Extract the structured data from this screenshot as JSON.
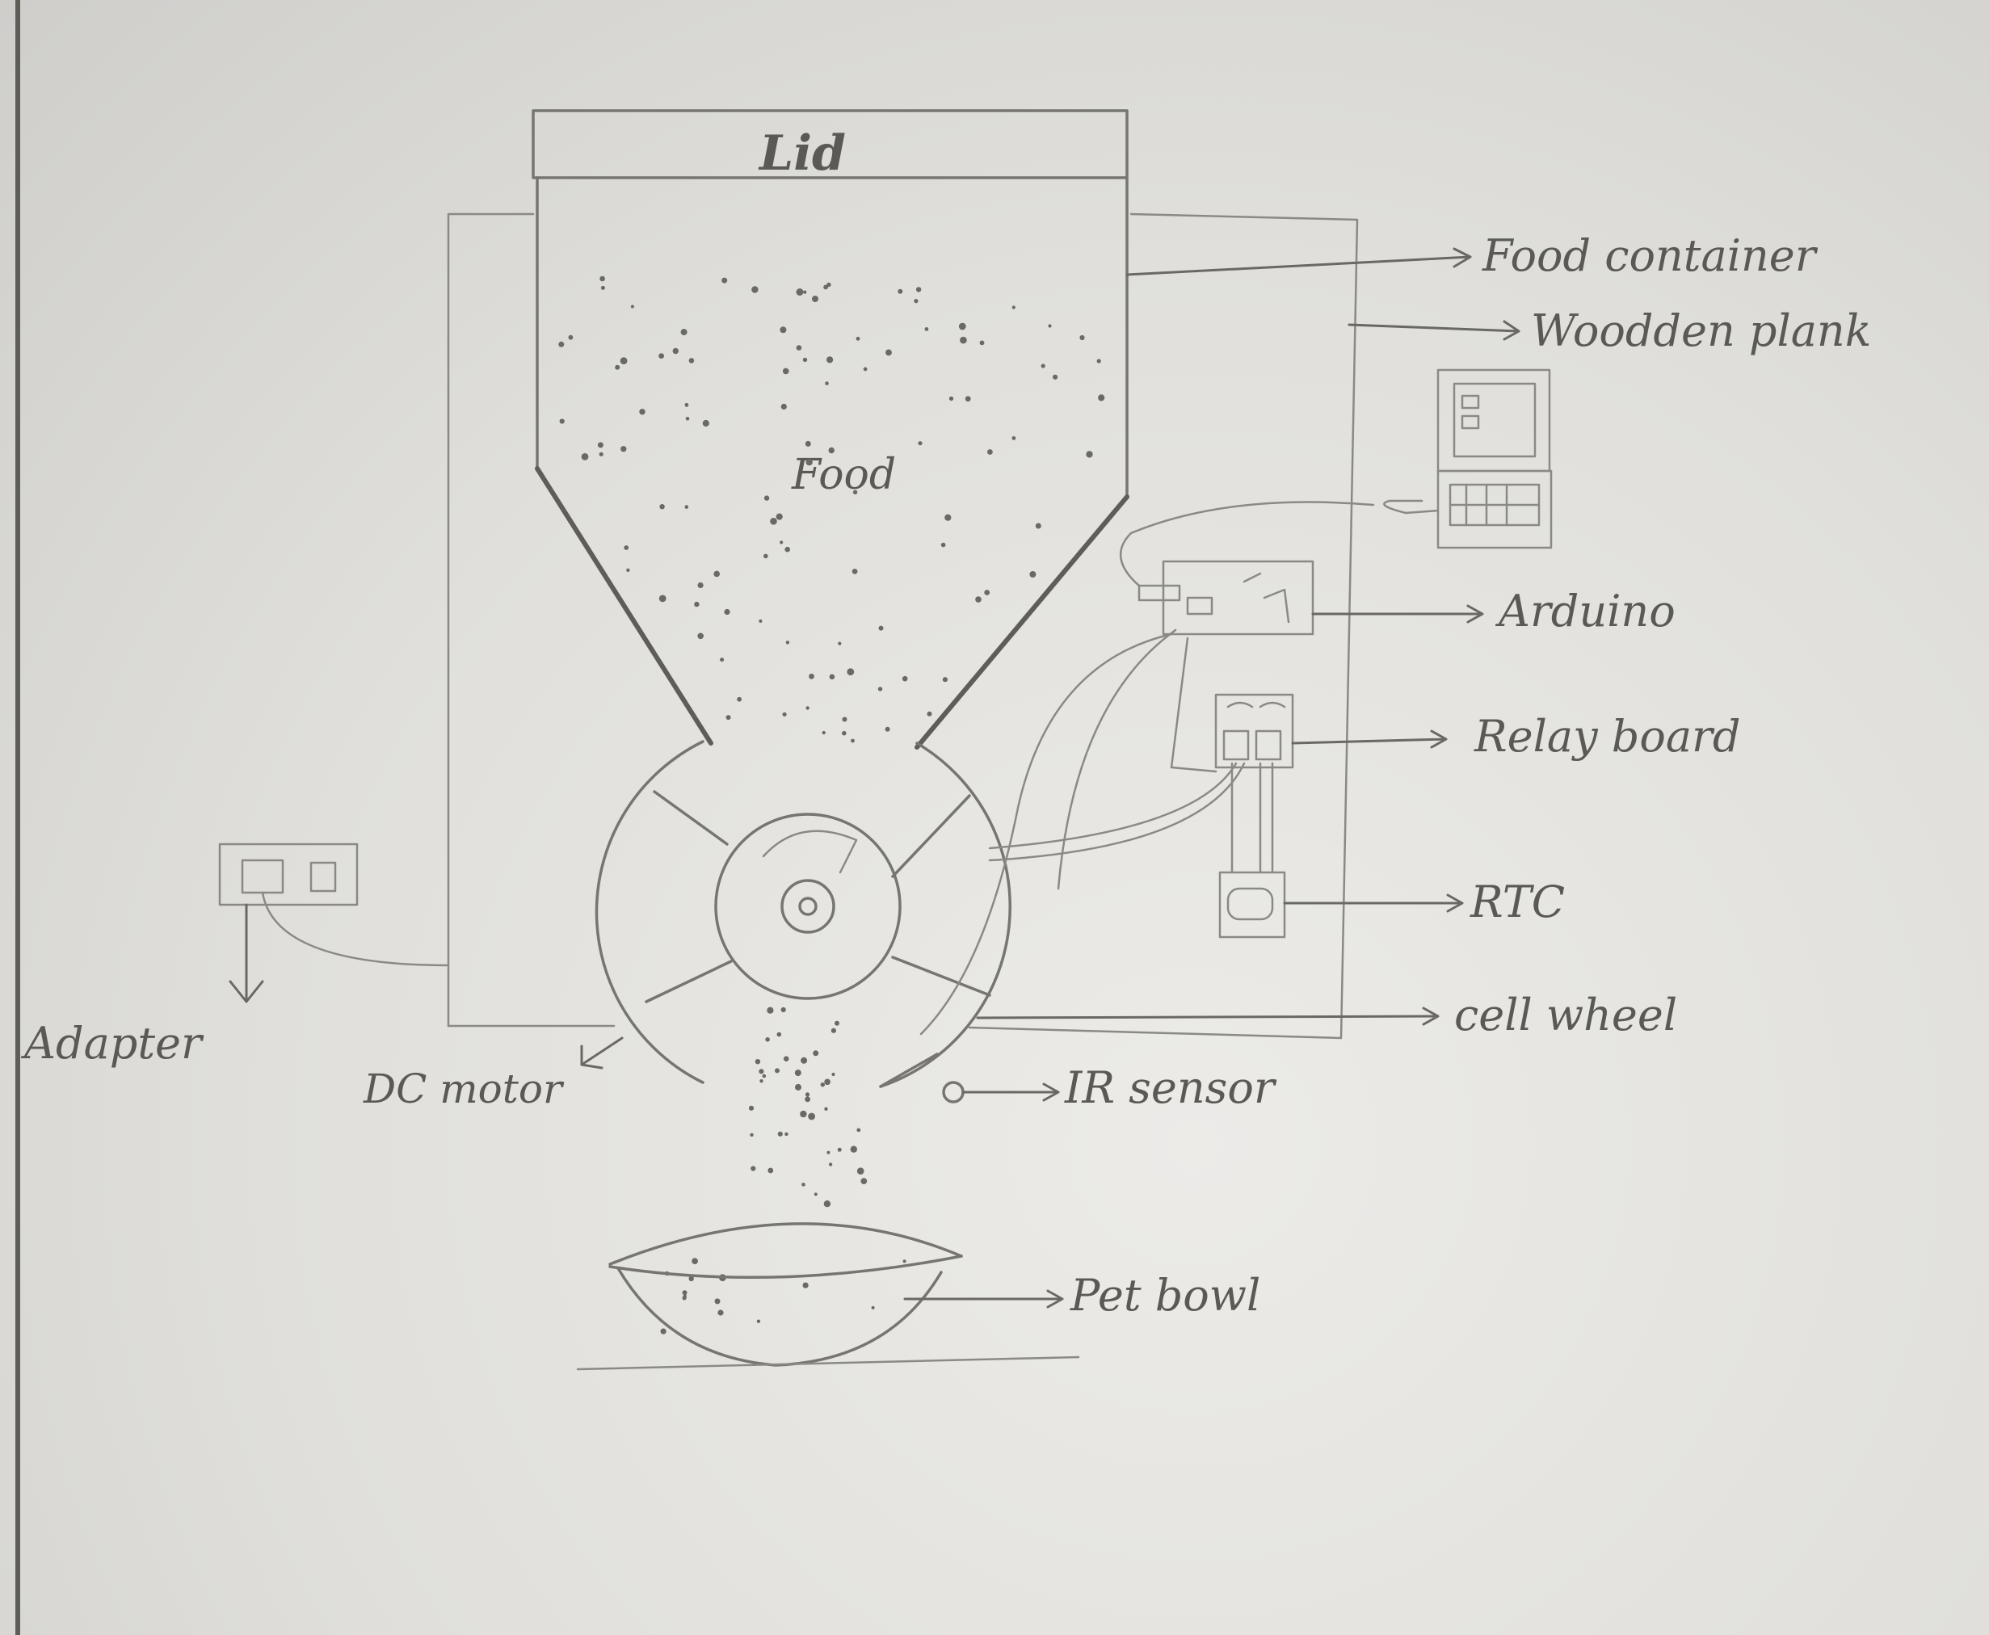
{
  "labels": {
    "lid": "Lid",
    "food": "Food",
    "food_container": "Food container",
    "wooden_plank": "Woodden plank",
    "arduino": "Arduino",
    "relay_board": "Relay board",
    "rtc": "RTC",
    "cell_wheel": "cell wheel",
    "ir_sensor": "IR sensor",
    "dc_motor": "DC motor",
    "adapter": "Adapter",
    "pet_bowl": "Pet bowl"
  }
}
